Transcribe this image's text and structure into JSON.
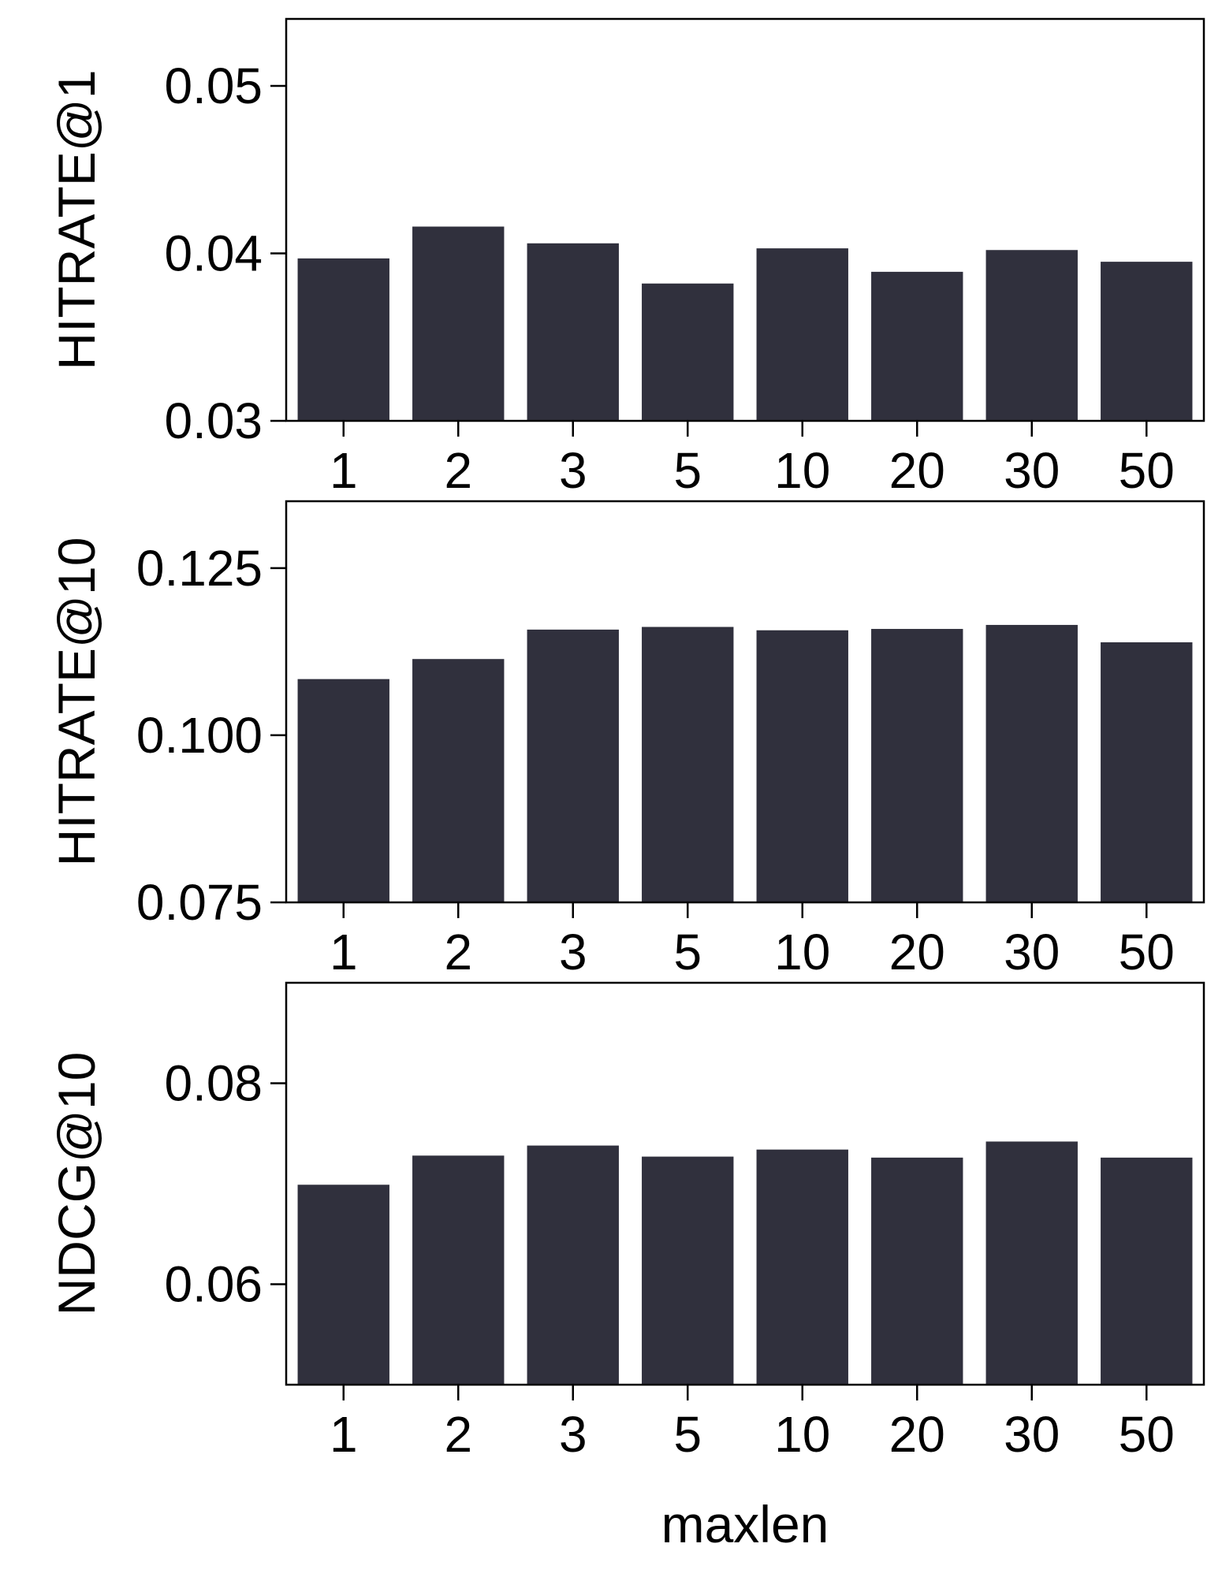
{
  "chart_data": [
    {
      "type": "bar",
      "categories": [
        "1",
        "2",
        "3",
        "5",
        "10",
        "20",
        "30",
        "50"
      ],
      "values": [
        0.0397,
        0.0416,
        0.0406,
        0.0382,
        0.0403,
        0.0389,
        0.0402,
        0.0395
      ],
      "title": "",
      "xlabel": "",
      "ylabel": "HITRATE@1",
      "ylim": [
        0.03,
        0.054
      ],
      "yticks": [
        "0.03",
        "0.04",
        "0.05"
      ],
      "grid": false,
      "bar_color": "#30303d"
    },
    {
      "type": "bar",
      "categories": [
        "1",
        "2",
        "3",
        "5",
        "10",
        "20",
        "30",
        "50"
      ],
      "values": [
        0.1084,
        0.1114,
        0.1158,
        0.1162,
        0.1157,
        0.1159,
        0.1165,
        0.1139
      ],
      "title": "",
      "xlabel": "",
      "ylabel": "HITRATE@10",
      "ylim": [
        0.075,
        0.135
      ],
      "yticks": [
        "0.075",
        "0.100",
        "0.125"
      ],
      "grid": false,
      "bar_color": "#30303d"
    },
    {
      "type": "bar",
      "categories": [
        "1",
        "2",
        "3",
        "5",
        "10",
        "20",
        "30",
        "50"
      ],
      "values": [
        0.0699,
        0.0728,
        0.0738,
        0.0727,
        0.0734,
        0.0726,
        0.0742,
        0.0726
      ],
      "title": "",
      "xlabel": "maxlen",
      "ylabel": "NDCG@10",
      "ylim": [
        0.05,
        0.09
      ],
      "yticks": [
        "0.06",
        "0.08"
      ],
      "grid": false,
      "bar_color": "#30303d"
    }
  ]
}
